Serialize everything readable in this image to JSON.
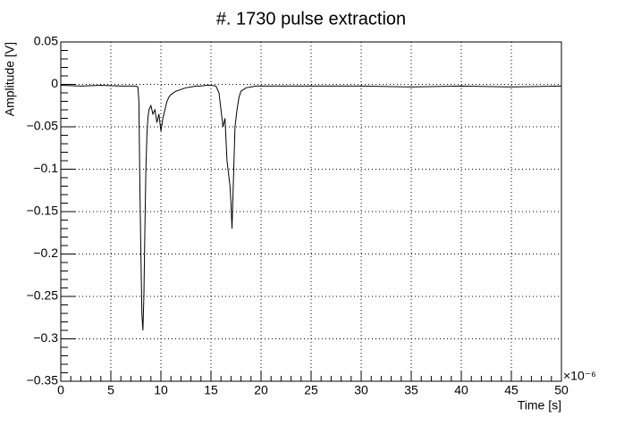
{
  "chart_data": {
    "type": "line",
    "title": "#. 1730 pulse extraction",
    "xlabel": "Time [s]",
    "ylabel": "Amplitude [V]",
    "x_multiplier": "×10⁻⁶",
    "x": [
      0,
      2,
      4,
      6,
      7,
      7.5,
      7.7,
      7.8,
      7.9,
      8.0,
      8.1,
      8.2,
      8.3,
      8.4,
      8.5,
      8.6,
      8.7,
      8.8,
      9.0,
      9.2,
      9.4,
      9.6,
      9.8,
      10.0,
      10.2,
      10.4,
      10.6,
      10.8,
      11.0,
      11.5,
      12,
      12.5,
      13,
      13.5,
      14,
      14.5,
      15,
      15.5,
      15.8,
      16.0,
      16.2,
      16.4,
      16.6,
      16.8,
      16.9,
      17.0,
      17.1,
      17.2,
      17.3,
      17.4,
      17.6,
      17.8,
      18,
      18.5,
      19,
      19.5,
      20,
      22,
      25,
      30,
      35,
      40,
      45,
      50
    ],
    "series": [
      {
        "color": "#000000",
        "values": [
          -0.001,
          -0.002,
          -0.001,
          -0.002,
          -0.002,
          -0.002,
          -0.003,
          -0.02,
          -0.12,
          -0.2,
          -0.27,
          -0.29,
          -0.25,
          -0.17,
          -0.1,
          -0.06,
          -0.04,
          -0.03,
          -0.025,
          -0.035,
          -0.03,
          -0.045,
          -0.035,
          -0.055,
          -0.04,
          -0.03,
          -0.02,
          -0.015,
          -0.012,
          -0.008,
          -0.006,
          -0.004,
          -0.003,
          -0.002,
          -0.002,
          -0.001,
          -0.001,
          -0.002,
          -0.01,
          -0.03,
          -0.05,
          -0.04,
          -0.09,
          -0.11,
          -0.12,
          -0.14,
          -0.17,
          -0.13,
          -0.09,
          -0.05,
          -0.03,
          -0.015,
          -0.008,
          -0.004,
          -0.003,
          -0.002,
          -0.002,
          -0.002,
          -0.002,
          -0.002,
          -0.003,
          -0.002,
          -0.003,
          -0.002
        ]
      }
    ],
    "xlim": [
      0,
      50
    ],
    "xticks": [
      0,
      5,
      10,
      15,
      20,
      25,
      30,
      35,
      40,
      45,
      50
    ],
    "ylim": [
      -0.35,
      0.05
    ],
    "yticks": [
      {
        "value": -0.35,
        "label": "−0.35"
      },
      {
        "value": -0.3,
        "label": "−0.3"
      },
      {
        "value": -0.25,
        "label": "−0.25"
      },
      {
        "value": -0.2,
        "label": "−0.2"
      },
      {
        "value": -0.15,
        "label": "−0.15"
      },
      {
        "value": -0.1,
        "label": "−0.1"
      },
      {
        "value": -0.05,
        "label": "−0.05"
      },
      0,
      0.05
    ],
    "grid": true
  }
}
